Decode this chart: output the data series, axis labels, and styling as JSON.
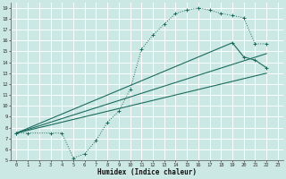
{
  "xlabel": "Humidex (Indice chaleur)",
  "bg_color": "#cce8e4",
  "line_color": "#1a6b5e",
  "grid_color": "#ffffff",
  "xlim": [
    -0.5,
    23.5
  ],
  "ylim": [
    5,
    19.5
  ],
  "xticks": [
    0,
    1,
    2,
    3,
    4,
    5,
    6,
    7,
    8,
    9,
    10,
    11,
    12,
    13,
    14,
    15,
    16,
    17,
    18,
    19,
    20,
    21,
    22,
    23
  ],
  "yticks": [
    5,
    6,
    7,
    8,
    9,
    10,
    11,
    12,
    13,
    14,
    15,
    16,
    17,
    18,
    19
  ],
  "line1_x": [
    0,
    1,
    3,
    4,
    5,
    6,
    7,
    8,
    9,
    10,
    11,
    12,
    13,
    14,
    15,
    16,
    17,
    18,
    19,
    20,
    21,
    22
  ],
  "line1_y": [
    7.5,
    7.5,
    7.5,
    7.5,
    5.2,
    5.6,
    6.8,
    8.5,
    9.5,
    11.5,
    15.2,
    16.5,
    17.5,
    18.5,
    18.8,
    19.0,
    18.8,
    18.5,
    18.3,
    18.1,
    15.7,
    15.7
  ],
  "line2_x": [
    0,
    22
  ],
  "line2_y": [
    7.5,
    13.0
  ],
  "line3_x": [
    0,
    19,
    20,
    21,
    22
  ],
  "line3_y": [
    7.5,
    15.8,
    14.5,
    14.2,
    13.5
  ],
  "line4_x": [
    0,
    22
  ],
  "line4_y": [
    7.5,
    14.8
  ]
}
